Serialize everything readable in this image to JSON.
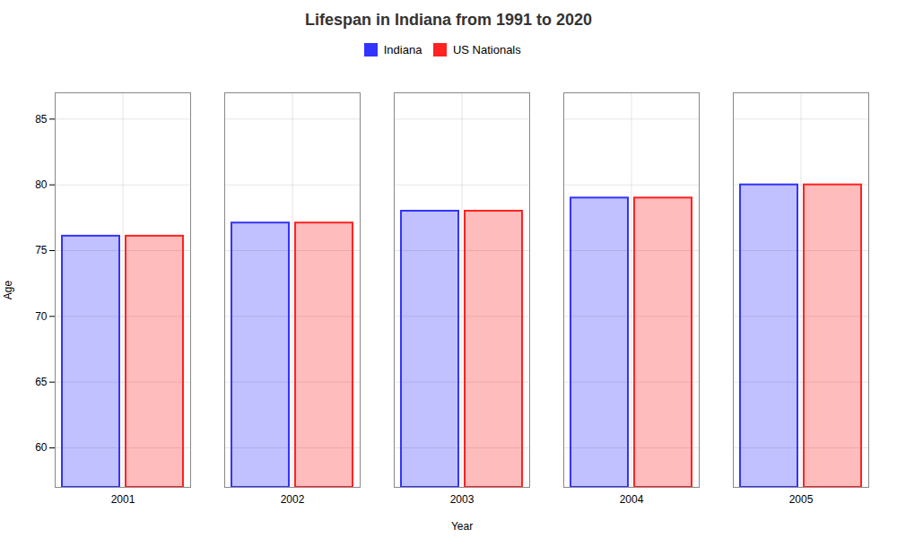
{
  "chart_data": {
    "type": "bar",
    "title": "Lifespan in Indiana from 1991 to 2020",
    "xlabel": "Year",
    "ylabel": "Age",
    "categories": [
      "2001",
      "2002",
      "2003",
      "2004",
      "2005"
    ],
    "series": [
      {
        "name": "Indiana",
        "color": "#3333ff",
        "values": [
          76.1,
          77.1,
          78.0,
          79.0,
          80.0
        ]
      },
      {
        "name": "US Nationals",
        "color": "#ff2222",
        "values": [
          76.1,
          77.1,
          78.0,
          79.0,
          80.0
        ]
      }
    ],
    "ylim": [
      57,
      87
    ],
    "yticks": [
      60,
      65,
      70,
      75,
      80,
      85
    ],
    "grid": true,
    "legend": "top"
  }
}
